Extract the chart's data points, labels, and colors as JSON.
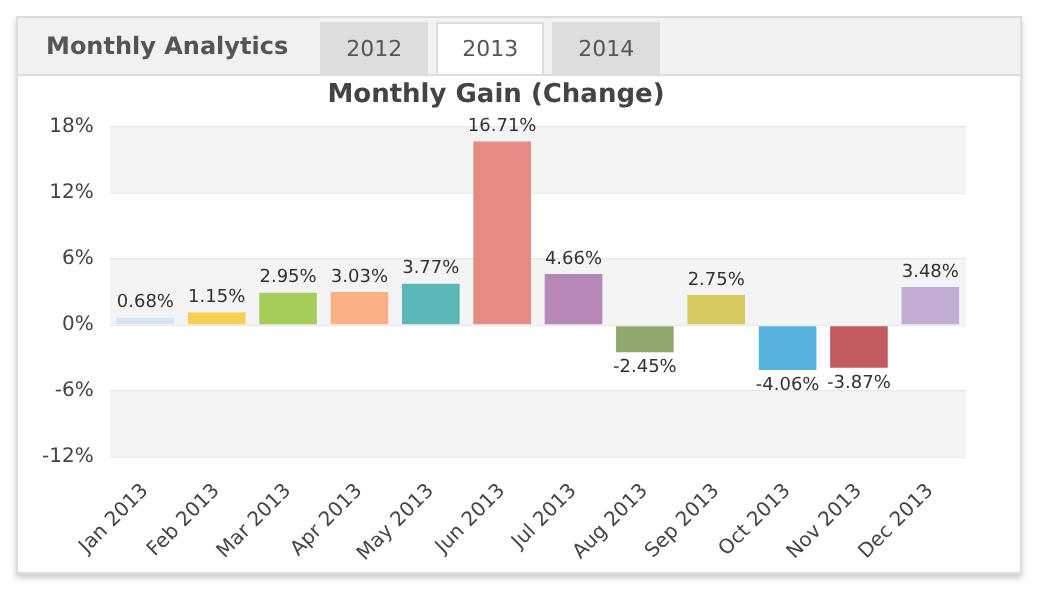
{
  "chart_data": {
    "type": "bar",
    "title": "Monthly Gain (Change)",
    "annotations": [
      "Monthly Analytics",
      "2012",
      "2013",
      "2014"
    ],
    "categories": [
      "Jan 2013",
      "Feb 2013",
      "Mar 2013",
      "Apr 2013",
      "May 2013",
      "Jun 2013",
      "Jul 2013",
      "Aug 2013",
      "Sep 2013",
      "Oct 2013",
      "Nov 2013",
      "Dec 2013"
    ],
    "values": [
      0.68,
      1.15,
      2.95,
      3.03,
      3.77,
      16.71,
      4.66,
      -2.45,
      2.75,
      -4.06,
      -3.87,
      3.48
    ],
    "colors": [
      "#d5e6f2",
      "#f6cf55",
      "#a6cc5a",
      "#fbb086",
      "#5bb8b8",
      "#e68a84",
      "#b787b8",
      "#90a86c",
      "#d4cb5e",
      "#56b3e0",
      "#c25b60",
      "#c3acd4"
    ],
    "value_labels": [
      "0.68%",
      "1.15%",
      "2.95%",
      "3.03%",
      "3.77%",
      "16.71%",
      "4.66%",
      "-2.45%",
      "2.75%",
      "-4.06%",
      "-3.87%",
      "3.48%"
    ],
    "ylim": [
      -12,
      18
    ],
    "yticks": [
      {
        "value": -12,
        "label": "-12%"
      },
      {
        "value": -6,
        "label": "-6%"
      },
      {
        "value": 0,
        "label": "0%"
      },
      {
        "value": 6,
        "label": "6%"
      },
      {
        "value": 12,
        "label": "12%"
      },
      {
        "value": 18,
        "label": "18%"
      }
    ],
    "grid": "y",
    "legend": false
  }
}
